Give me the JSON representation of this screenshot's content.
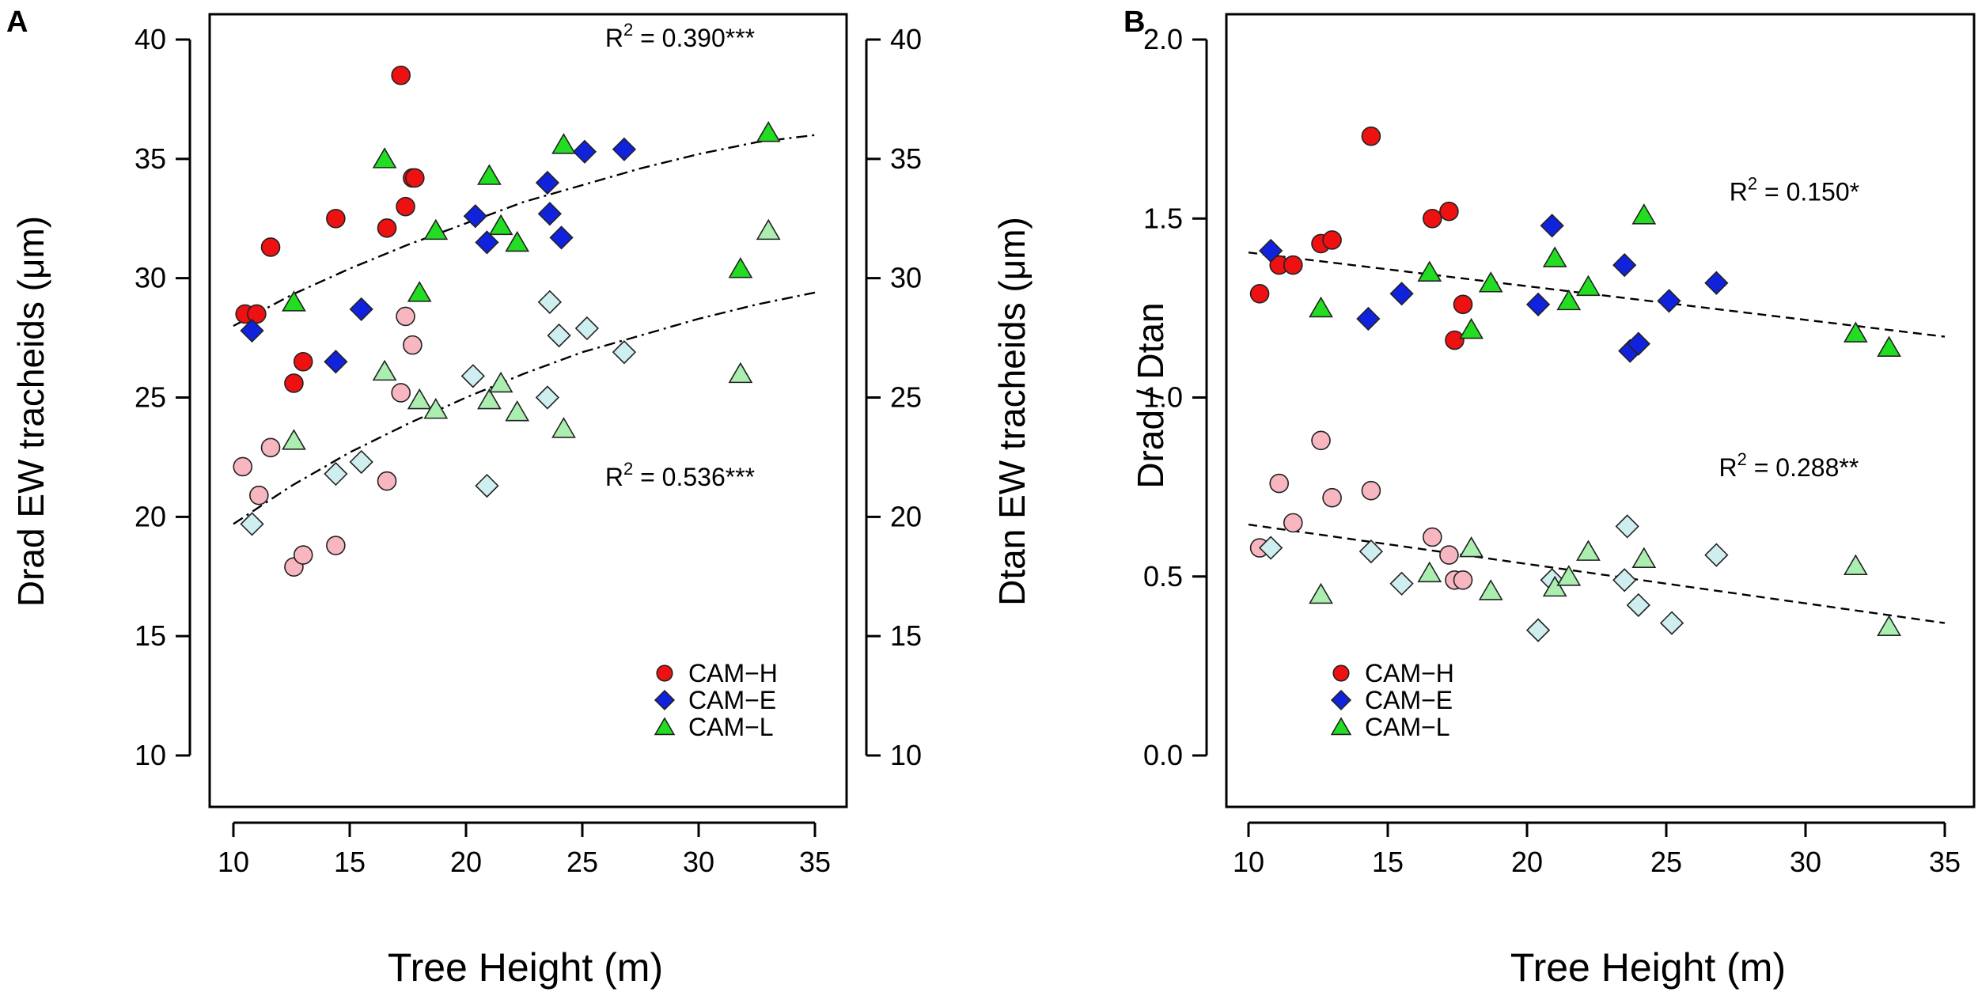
{
  "figure": {
    "panels": [
      "A",
      "B"
    ],
    "colors": {
      "CAM-H": "#ee1111",
      "CAM-H_light": "#f7b6c0",
      "CAM-E": "#1122dd",
      "CAM-E_light": "#cfeef0",
      "CAM-L": "#22dd22",
      "CAM-L_light": "#aaeeb0",
      "fit_line": "#000000"
    }
  },
  "chart_data": [
    {
      "type": "scatter",
      "panel_label": "A",
      "xlabel": "Tree Height (m)",
      "ylabel": "Drad  EW tracheids (μm)",
      "ylabel_right": "Dtan  EW tracheids (μm)",
      "xlim": [
        10,
        35
      ],
      "ylim": [
        10,
        40
      ],
      "x_ticks": [
        "10",
        "15",
        "20",
        "25",
        "30",
        "35"
      ],
      "y_ticks": [
        "10",
        "15",
        "20",
        "25",
        "30",
        "35",
        "40"
      ],
      "legend": [
        {
          "name": "CAM−H",
          "symbol": "circle",
          "color": "#ee1111"
        },
        {
          "name": "CAM−E",
          "symbol": "diamond",
          "color": "#1122dd"
        },
        {
          "name": "CAM−L",
          "symbol": "triangle",
          "color": "#22dd22"
        }
      ],
      "annotations": [
        {
          "prefix": "R",
          "sup": "2",
          "suffix": " = 0.390***",
          "x": 29.2,
          "y": 39.7
        },
        {
          "prefix": "R",
          "sup": "2",
          "suffix": " = 0.536***",
          "x": 29.2,
          "y": 21.3
        }
      ],
      "series": [
        {
          "name": "CAM-H",
          "variable": "Drad",
          "symbol": "circle",
          "color": "#ee1111",
          "x": [
            10.5,
            11.0,
            11.6,
            12.6,
            13.0,
            14.4,
            16.6,
            17.2,
            17.4,
            17.7,
            17.8
          ],
          "y": [
            28.5,
            28.5,
            31.3,
            25.6,
            26.5,
            32.5,
            32.1,
            38.5,
            33.0,
            34.2,
            34.2
          ]
        },
        {
          "name": "CAM-E",
          "variable": "Drad",
          "symbol": "diamond",
          "color": "#1122dd",
          "x": [
            10.8,
            14.4,
            15.5,
            20.4,
            20.9,
            23.5,
            23.6,
            24.1,
            25.1,
            26.8
          ],
          "y": [
            27.8,
            26.5,
            28.7,
            32.6,
            31.5,
            34.0,
            32.7,
            31.7,
            35.3,
            35.4
          ]
        },
        {
          "name": "CAM-L",
          "variable": "Drad",
          "symbol": "triangle",
          "color": "#22dd22",
          "x": [
            12.6,
            16.5,
            18.0,
            18.7,
            21.0,
            21.5,
            22.2,
            24.2,
            31.8,
            33.0
          ],
          "y": [
            29.0,
            35.0,
            29.4,
            32.0,
            34.3,
            32.2,
            31.5,
            35.6,
            30.4,
            36.1
          ]
        },
        {
          "name": "CAM-H",
          "variable": "Dtan",
          "symbol": "circle",
          "color": "#f7b6c0",
          "x": [
            10.4,
            11.1,
            11.6,
            12.6,
            13.0,
            14.4,
            16.6,
            17.2,
            17.4,
            17.7
          ],
          "y": [
            22.1,
            20.9,
            22.9,
            17.9,
            18.4,
            18.8,
            21.5,
            25.2,
            28.4,
            27.2
          ]
        },
        {
          "name": "CAM-E",
          "variable": "Dtan",
          "symbol": "diamond",
          "color": "#cfeef0",
          "x": [
            10.8,
            14.4,
            15.5,
            20.3,
            20.9,
            23.5,
            23.6,
            24.0,
            25.2,
            26.8
          ],
          "y": [
            19.7,
            21.8,
            22.3,
            25.9,
            21.3,
            25.0,
            29.0,
            27.6,
            27.9,
            26.9
          ]
        },
        {
          "name": "CAM-L",
          "variable": "Dtan",
          "symbol": "triangle",
          "color": "#aaeeb0",
          "x": [
            12.6,
            16.5,
            18.0,
            18.7,
            21.0,
            21.5,
            22.2,
            24.2,
            31.8,
            33.0
          ],
          "y": [
            23.2,
            26.1,
            24.9,
            24.5,
            24.9,
            25.6,
            24.4,
            23.7,
            26.0,
            32.0
          ]
        }
      ],
      "fit_lines": [
        {
          "style": "dotdash",
          "x": [
            10.0,
            12.5,
            15.0,
            17.5,
            20.0,
            22.5,
            25.0,
            27.5,
            30.0,
            32.5,
            35.0
          ],
          "y": [
            28.0,
            29.3,
            30.4,
            31.4,
            32.3,
            33.2,
            33.9,
            34.6,
            35.2,
            35.7,
            36.0
          ]
        },
        {
          "style": "dotdash",
          "x": [
            10.0,
            12.5,
            15.0,
            17.5,
            20.0,
            22.5,
            25.0,
            27.5,
            30.0,
            32.5,
            35.0
          ],
          "y": [
            19.7,
            21.3,
            22.7,
            23.9,
            25.0,
            26.0,
            26.9,
            27.6,
            28.3,
            28.9,
            29.4
          ]
        }
      ]
    },
    {
      "type": "scatter",
      "panel_label": "B",
      "xlabel": "Tree Height (m)",
      "ylabel": "Drad / Dtan",
      "xlim": [
        10,
        35
      ],
      "ylim": [
        0.0,
        2.0
      ],
      "x_ticks": [
        "10",
        "15",
        "20",
        "25",
        "30",
        "35"
      ],
      "y_ticks": [
        "0.0",
        "0.5",
        "1.0",
        "1.5",
        "2.0"
      ],
      "legend": [
        {
          "name": "CAM−H",
          "symbol": "circle",
          "color": "#ee1111"
        },
        {
          "name": "CAM−E",
          "symbol": "diamond",
          "color": "#1122dd"
        },
        {
          "name": "CAM−L",
          "symbol": "triangle",
          "color": "#22dd22"
        }
      ],
      "annotations": [
        {
          "prefix": "R",
          "sup": "2",
          "suffix": " = 0.150*",
          "x": 29.6,
          "y": 1.55
        },
        {
          "prefix": "R",
          "sup": "2",
          "suffix": " = 0.288**",
          "x": 29.4,
          "y": 0.78
        }
      ],
      "series": [
        {
          "name": "CAM-H",
          "variable": "ratio",
          "symbol": "circle",
          "color": "#ee1111",
          "x": [
            10.4,
            11.1,
            11.6,
            12.6,
            13.0,
            14.4,
            16.6,
            17.2,
            17.4,
            17.7
          ],
          "y": [
            1.29,
            1.37,
            1.37,
            1.43,
            1.44,
            1.73,
            1.5,
            1.52,
            1.16,
            1.26
          ]
        },
        {
          "name": "CAM-E",
          "variable": "ratio",
          "symbol": "diamond",
          "color": "#1122dd",
          "x": [
            10.8,
            14.3,
            15.5,
            20.4,
            20.9,
            23.5,
            23.7,
            24.0,
            25.1,
            26.8
          ],
          "y": [
            1.41,
            1.22,
            1.29,
            1.26,
            1.48,
            1.37,
            1.13,
            1.15,
            1.27,
            1.32
          ]
        },
        {
          "name": "CAM-L",
          "variable": "ratio",
          "symbol": "triangle",
          "color": "#22dd22",
          "x": [
            12.6,
            16.5,
            18.0,
            18.7,
            21.0,
            21.5,
            22.2,
            24.2,
            31.8,
            33.0
          ],
          "y": [
            1.25,
            1.35,
            1.19,
            1.32,
            1.39,
            1.27,
            1.31,
            1.51,
            1.18,
            1.14
          ]
        },
        {
          "name": "CAM-H",
          "variable": "ratio_light",
          "symbol": "circle",
          "color": "#f7b6c0",
          "x": [
            10.4,
            11.1,
            11.6,
            12.6,
            13.0,
            14.4,
            16.6,
            17.2,
            17.4,
            17.7
          ],
          "y": [
            0.58,
            0.76,
            0.65,
            0.88,
            0.72,
            0.74,
            0.61,
            0.56,
            0.49,
            0.49
          ]
        },
        {
          "name": "CAM-E",
          "variable": "ratio_light",
          "symbol": "diamond",
          "color": "#cfeef0",
          "x": [
            10.8,
            14.4,
            15.5,
            20.4,
            20.9,
            23.5,
            23.6,
            24.0,
            25.2,
            26.8
          ],
          "y": [
            0.58,
            0.57,
            0.48,
            0.35,
            0.49,
            0.49,
            0.64,
            0.42,
            0.37,
            0.56
          ]
        },
        {
          "name": "CAM-L",
          "variable": "ratio_light",
          "symbol": "triangle",
          "color": "#aaeeb0",
          "x": [
            12.6,
            16.5,
            18.0,
            18.7,
            21.0,
            21.5,
            22.2,
            24.2,
            31.8,
            33.0
          ],
          "y": [
            0.45,
            0.51,
            0.58,
            0.46,
            0.47,
            0.5,
            0.57,
            0.55,
            0.53,
            0.36
          ]
        }
      ],
      "fit_lines": [
        {
          "style": "dashed",
          "x": [
            10.0,
            35.0
          ],
          "y": [
            1.405,
            1.17
          ]
        },
        {
          "style": "dashed",
          "x": [
            10.0,
            35.0
          ],
          "y": [
            0.645,
            0.37
          ]
        }
      ]
    }
  ]
}
